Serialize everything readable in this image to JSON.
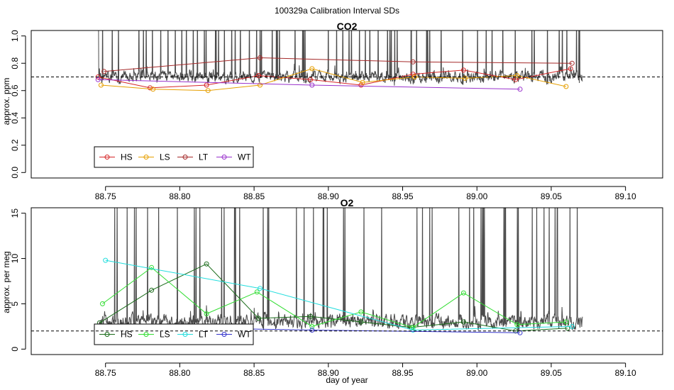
{
  "figure_title": "100329a   Calibration Interval SDs",
  "xlabel": "day of year",
  "x_ticks": [
    "88.75",
    "88.80",
    "88.85",
    "88.90",
    "88.95",
    "89.00",
    "89.05",
    "89.10"
  ],
  "chart_data": [
    {
      "type": "line",
      "title": "CO2",
      "ylabel": "approx. ppm",
      "xlim": [
        88.7,
        89.125
      ],
      "ylim": [
        -0.04,
        1.04
      ],
      "y_ticks": [
        "0.0",
        "0.2",
        "0.4",
        "0.6",
        "0.8",
        "1.0"
      ],
      "reference_line": 0.7,
      "legend_position": "bottom-left",
      "series": [
        {
          "name": "HS",
          "color": "#d62728",
          "x": [
            88.745,
            88.78,
            88.818,
            88.853,
            88.888,
            88.922,
            88.957,
            88.991,
            89.026,
            89.063
          ],
          "y": [
            0.7,
            0.62,
            0.64,
            0.71,
            0.68,
            0.64,
            0.72,
            0.75,
            0.68,
            0.76
          ]
        },
        {
          "name": "LS",
          "color": "#e69f00",
          "x": [
            88.747,
            88.782,
            88.819,
            88.854,
            88.889,
            88.923,
            88.958,
            88.992,
            89.027,
            89.06
          ],
          "y": [
            0.64,
            0.61,
            0.6,
            0.64,
            0.76,
            0.66,
            0.7,
            0.69,
            0.71,
            0.63
          ]
        },
        {
          "name": "LT",
          "color": "#a52a2a",
          "x": [
            88.749,
            88.854,
            88.957,
            89.064
          ],
          "y": [
            0.74,
            0.84,
            0.81,
            0.8
          ]
        },
        {
          "name": "WT",
          "color": "#9932cc",
          "x": [
            88.745,
            88.889,
            89.029
          ],
          "y": [
            0.68,
            0.64,
            0.61
          ]
        }
      ]
    },
    {
      "type": "line",
      "title": "O2",
      "ylabel": "approx. per meg",
      "xlim": [
        88.7,
        89.125
      ],
      "ylim": [
        -0.6,
        15.6
      ],
      "y_ticks": [
        "0",
        "5",
        "10",
        "15"
      ],
      "reference_line": 2,
      "legend_position": "bottom-left",
      "series": [
        {
          "name": "HS",
          "color": "#1a6b1a",
          "x": [
            88.746,
            88.781,
            88.818,
            88.853,
            88.888,
            88.922,
            88.956,
            88.991,
            89.026,
            89.061
          ],
          "y": [
            2.9,
            6.5,
            9.4,
            3.4,
            3.6,
            3.0,
            2.4,
            3.0,
            2.0,
            2.3
          ]
        },
        {
          "name": "LS",
          "color": "#33dd33",
          "x": [
            88.748,
            88.781,
            88.818,
            88.852,
            88.889,
            88.922,
            88.957,
            88.991,
            89.027,
            89.06
          ],
          "y": [
            5.0,
            9.0,
            3.9,
            6.3,
            2.5,
            4.1,
            2.4,
            6.2,
            2.7,
            3.0
          ]
        },
        {
          "name": "LT",
          "color": "#22dddd",
          "x": [
            88.75,
            88.854,
            88.957,
            89.064
          ],
          "y": [
            9.8,
            6.7,
            2.1,
            2.5
          ]
        },
        {
          "name": "WT",
          "color": "#3333cc",
          "x": [
            88.745,
            88.889,
            89.029
          ],
          "y": [
            2.5,
            2.1,
            1.8
          ]
        }
      ]
    }
  ]
}
